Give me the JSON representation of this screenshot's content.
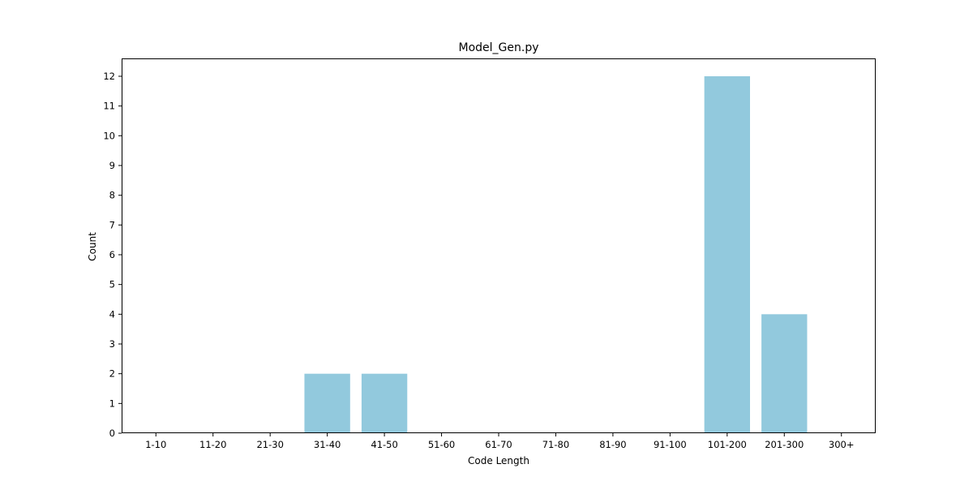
{
  "chart_data": {
    "type": "bar",
    "title": "Model_Gen.py",
    "xlabel": "Code Length",
    "ylabel": "Count",
    "categories": [
      "1-10",
      "11-20",
      "21-30",
      "31-40",
      "41-50",
      "51-60",
      "61-70",
      "71-80",
      "81-90",
      "91-100",
      "101-200",
      "201-300",
      "300+"
    ],
    "values": [
      0,
      0,
      0,
      2,
      2,
      0,
      0,
      0,
      0,
      0,
      12,
      4,
      0
    ],
    "y_ticks": [
      0,
      1,
      2,
      3,
      4,
      5,
      6,
      7,
      8,
      9,
      10,
      11,
      12
    ],
    "ylim": [
      0,
      12.6
    ],
    "bar_color": "#92c9dd",
    "grid": false,
    "legend": "none"
  }
}
